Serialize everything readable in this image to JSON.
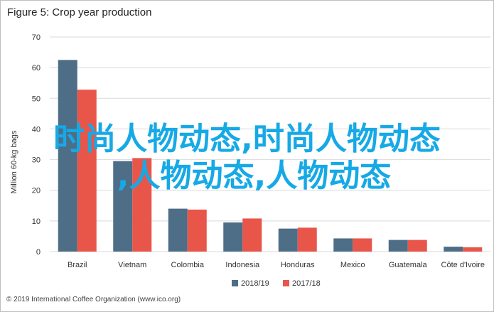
{
  "figure_title": "Figure 5: Crop year production",
  "overlay_text": {
    "line1": "时尚人物动态,时尚人物动态",
    "line2": ",人物动态,人物动态"
  },
  "credit": "© 2019 International Coffee Organization (www.ico.org)",
  "colors": {
    "series_2018_19": "#4e6d87",
    "series_2017_18": "#e8564a",
    "grid": "#d9d9d9"
  },
  "chart_data": {
    "type": "bar",
    "title": "",
    "xlabel": "",
    "ylabel": "Million 60-kg bags",
    "ylim": [
      0,
      70
    ],
    "yticks": [
      0,
      10,
      20,
      30,
      40,
      50,
      60,
      70
    ],
    "grid": true,
    "legend_position": "bottom",
    "categories": [
      "Brazil",
      "Vietnam",
      "Colombia",
      "Indonesia",
      "Honduras",
      "Mexico",
      "Guatemala",
      "Côte d'Ivoire"
    ],
    "series": [
      {
        "name": "2018/19",
        "values": [
          62.5,
          29.5,
          14,
          9.5,
          7.5,
          4.3,
          3.8,
          1.6
        ]
      },
      {
        "name": "2017/18",
        "values": [
          52.8,
          30.5,
          13.7,
          10.8,
          7.8,
          4.3,
          3.8,
          1.4
        ]
      }
    ]
  }
}
